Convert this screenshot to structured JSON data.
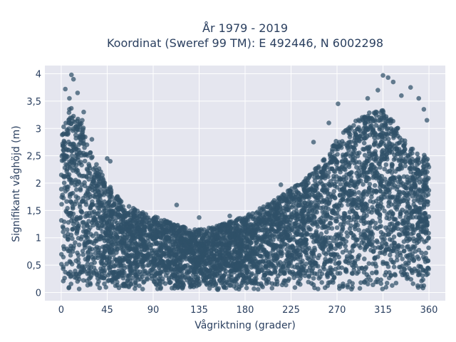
{
  "chart_data": {
    "type": "scatter",
    "title_lines": [
      "År 1979 - 2019",
      "Koordinat (Sweref 99 TM): E 492446, N 6002298"
    ],
    "xlabel": "Vågriktning (grader)",
    "ylabel": "Signifikant våghöjd (m)",
    "xlim": [
      -16,
      376
    ],
    "ylim": [
      -0.15,
      4.15
    ],
    "x_ticks": [
      0,
      45,
      90,
      135,
      180,
      225,
      270,
      315,
      360
    ],
    "x_tick_labels": [
      "0",
      "45",
      "90",
      "135",
      "180",
      "225",
      "270",
      "315",
      "360"
    ],
    "y_ticks": [
      0,
      0.5,
      1,
      1.5,
      2,
      2.5,
      3,
      3.5,
      4
    ],
    "y_tick_labels": [
      "0",
      "0,5",
      "1",
      "1,5",
      "2",
      "2,5",
      "3",
      "3,5",
      "4"
    ],
    "grid": true,
    "legend": "none",
    "colors": {
      "points": "#2f5068",
      "plot_background": "#e5e6ef",
      "grid": "#ffffff"
    },
    "envelope": {
      "description_of": "approximate upper extent of point cloud by direction (data units)",
      "x": [
        0,
        10,
        20,
        30,
        45,
        60,
        75,
        90,
        105,
        120,
        135,
        150,
        165,
        180,
        195,
        210,
        225,
        240,
        255,
        270,
        285,
        300,
        315,
        330,
        345,
        360
      ],
      "y": [
        3.0,
        3.4,
        3.2,
        2.5,
        2.0,
        1.65,
        1.5,
        1.4,
        1.3,
        1.2,
        1.15,
        1.2,
        1.3,
        1.4,
        1.55,
        1.7,
        1.9,
        2.1,
        2.4,
        2.8,
        3.1,
        3.3,
        3.4,
        3.0,
        2.6,
        2.5
      ]
    },
    "outliers": [
      {
        "x": 10,
        "y": 3.98
      },
      {
        "x": 12,
        "y": 3.9
      },
      {
        "x": 4,
        "y": 3.72
      },
      {
        "x": 16,
        "y": 3.65
      },
      {
        "x": 8,
        "y": 3.55
      },
      {
        "x": 22,
        "y": 3.3
      },
      {
        "x": 30,
        "y": 2.8
      },
      {
        "x": 45,
        "y": 2.45
      },
      {
        "x": 48,
        "y": 2.4
      },
      {
        "x": 113,
        "y": 1.6
      },
      {
        "x": 135,
        "y": 1.37
      },
      {
        "x": 165,
        "y": 1.4
      },
      {
        "x": 215,
        "y": 1.97
      },
      {
        "x": 300,
        "y": 3.55
      },
      {
        "x": 310,
        "y": 3.7
      },
      {
        "x": 315,
        "y": 3.97
      },
      {
        "x": 320,
        "y": 3.93
      },
      {
        "x": 325,
        "y": 3.85
      },
      {
        "x": 333,
        "y": 3.6
      },
      {
        "x": 342,
        "y": 3.75
      },
      {
        "x": 350,
        "y": 3.55
      },
      {
        "x": 355,
        "y": 3.35
      },
      {
        "x": 358,
        "y": 3.15
      },
      {
        "x": 271,
        "y": 3.45
      },
      {
        "x": 262,
        "y": 3.1
      },
      {
        "x": 247,
        "y": 2.75
      },
      {
        "x": 8,
        "y": 3.35
      },
      {
        "x": 18,
        "y": 3.1
      }
    ]
  }
}
